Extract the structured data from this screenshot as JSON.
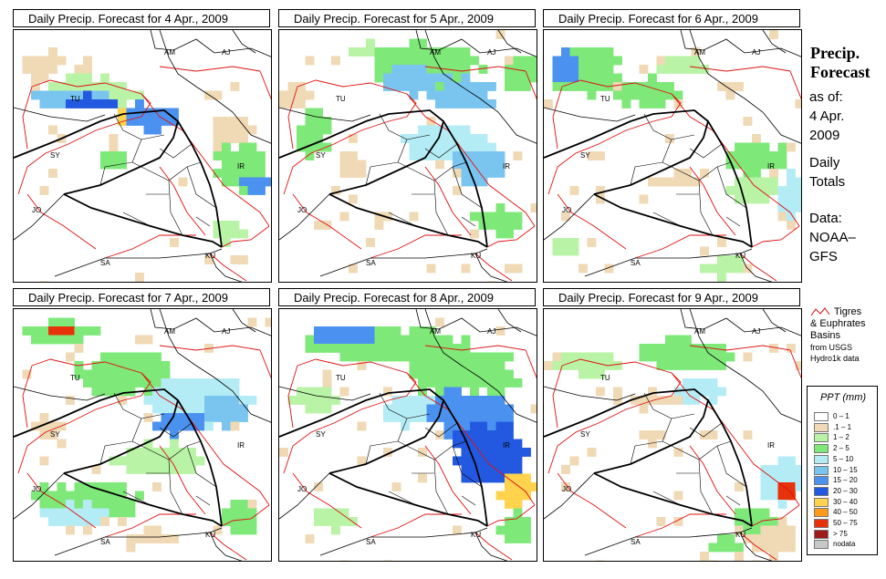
{
  "panels": [
    {
      "title": "Daily Precip. Forecast for  4 Apr., 2009",
      "pattern": 1
    },
    {
      "title": "Daily Precip. Forecast for  5 Apr., 2009",
      "pattern": 2
    },
    {
      "title": "Daily Precip. Forecast for  6 Apr., 2009",
      "pattern": 3
    },
    {
      "title": "Daily Precip. Forecast for  7 Apr., 2009",
      "pattern": 4
    },
    {
      "title": "Daily Precip. Forecast for  8 Apr., 2009",
      "pattern": 5
    },
    {
      "title": "Daily Precip. Forecast for  9 Apr., 2009",
      "pattern": 6
    }
  ],
  "country_labels": [
    "AM",
    "AJ",
    "TU",
    "SY",
    "IR",
    "JO",
    "SA",
    "KU"
  ],
  "sidebar": {
    "title_line1": "Precip.",
    "title_line2": "Forecast",
    "asof_line1": "as of:",
    "asof_line2": "4 Apr.",
    "asof_line3": "2009",
    "daily_line1": "Daily",
    "daily_line2": "Totals",
    "data_line1": "Data:",
    "data_line2": "NOAA–",
    "data_line3": "GFS",
    "basin_line1": "Tigres",
    "basin_line2": "& Euphrates",
    "basin_line3": "Basins",
    "basin_line4": "from USGS",
    "basin_line5": "Hydro1k data"
  },
  "legend": {
    "title": "PPT (mm)",
    "items": [
      {
        "label": "0 – 1",
        "color": "#ffffff"
      },
      {
        "label": ".1 – 1",
        "color": "#f0d9b5"
      },
      {
        "label": "1 – 2",
        "color": "#b9f3a6"
      },
      {
        "label": "2 – 5",
        "color": "#7ee879"
      },
      {
        "label": "5 – 10",
        "color": "#b4ecf6"
      },
      {
        "label": "10 – 15",
        "color": "#7ac5ef"
      },
      {
        "label": "15 – 20",
        "color": "#4b92f0"
      },
      {
        "label": "20 – 30",
        "color": "#2359e0"
      },
      {
        "label": "30 – 40",
        "color": "#ffd34d"
      },
      {
        "label": "40 – 50",
        "color": "#ff9a1a"
      },
      {
        "label": "50 – 75",
        "color": "#e8320a"
      },
      {
        "label": "> 75",
        "color": "#9e1b1b"
      },
      {
        "label": "nodata",
        "color": "#c8c8c8"
      }
    ]
  },
  "colors": {
    "basin": "#dd1111",
    "border": "#000000"
  }
}
